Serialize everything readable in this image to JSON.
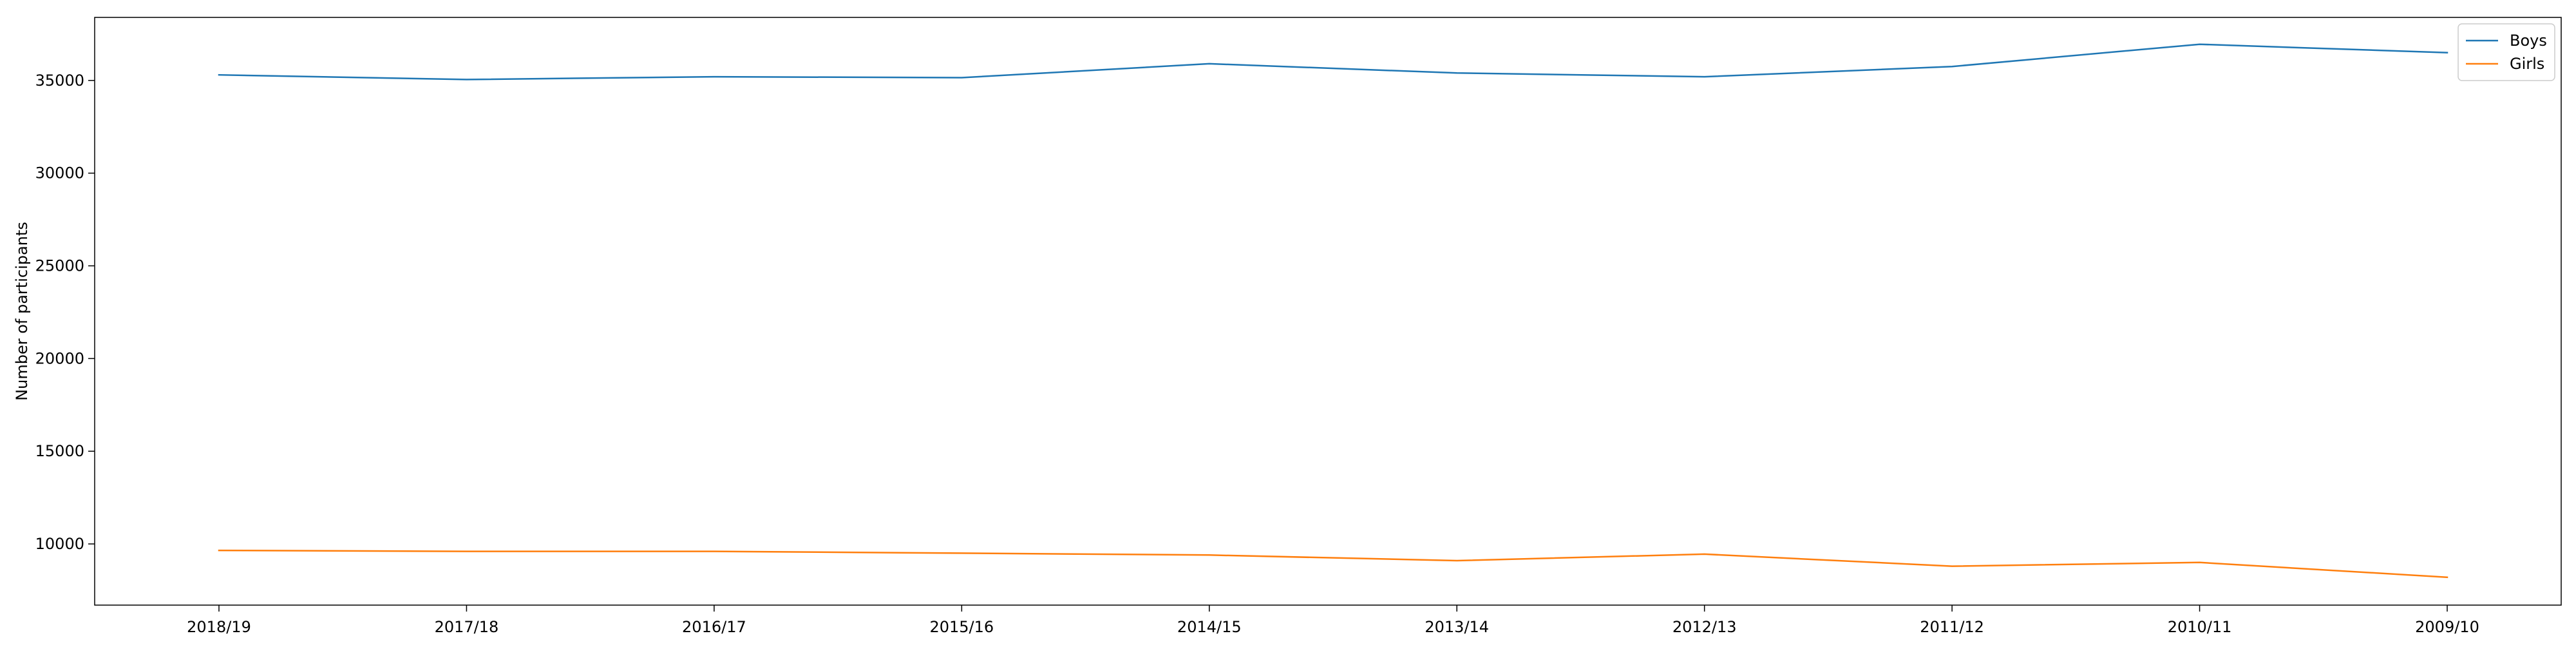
{
  "chart_data": {
    "type": "line",
    "title": "",
    "xlabel": "",
    "ylabel": "Number of participants",
    "categories": [
      "2018/19",
      "2017/18",
      "2016/17",
      "2015/16",
      "2014/15",
      "2013/14",
      "2012/13",
      "2011/12",
      "2010/11",
      "2009/10"
    ],
    "series": [
      {
        "name": "Boys",
        "color": "#1f77b4",
        "values": [
          35300,
          35050,
          35200,
          35150,
          35900,
          35400,
          35200,
          35750,
          36950,
          36500
        ]
      },
      {
        "name": "Girls",
        "color": "#ff7f0e",
        "values": [
          9650,
          9600,
          9600,
          9500,
          9400,
          9100,
          9450,
          8800,
          9000,
          8200
        ]
      }
    ],
    "ylim": [
      6700,
      38400
    ],
    "yticks": [
      10000,
      15000,
      20000,
      25000,
      30000,
      35000
    ],
    "ytick_labels": [
      "10000",
      "15000",
      "20000",
      "25000",
      "30000",
      "35000"
    ],
    "grid": false,
    "legend_position": "upper right"
  }
}
